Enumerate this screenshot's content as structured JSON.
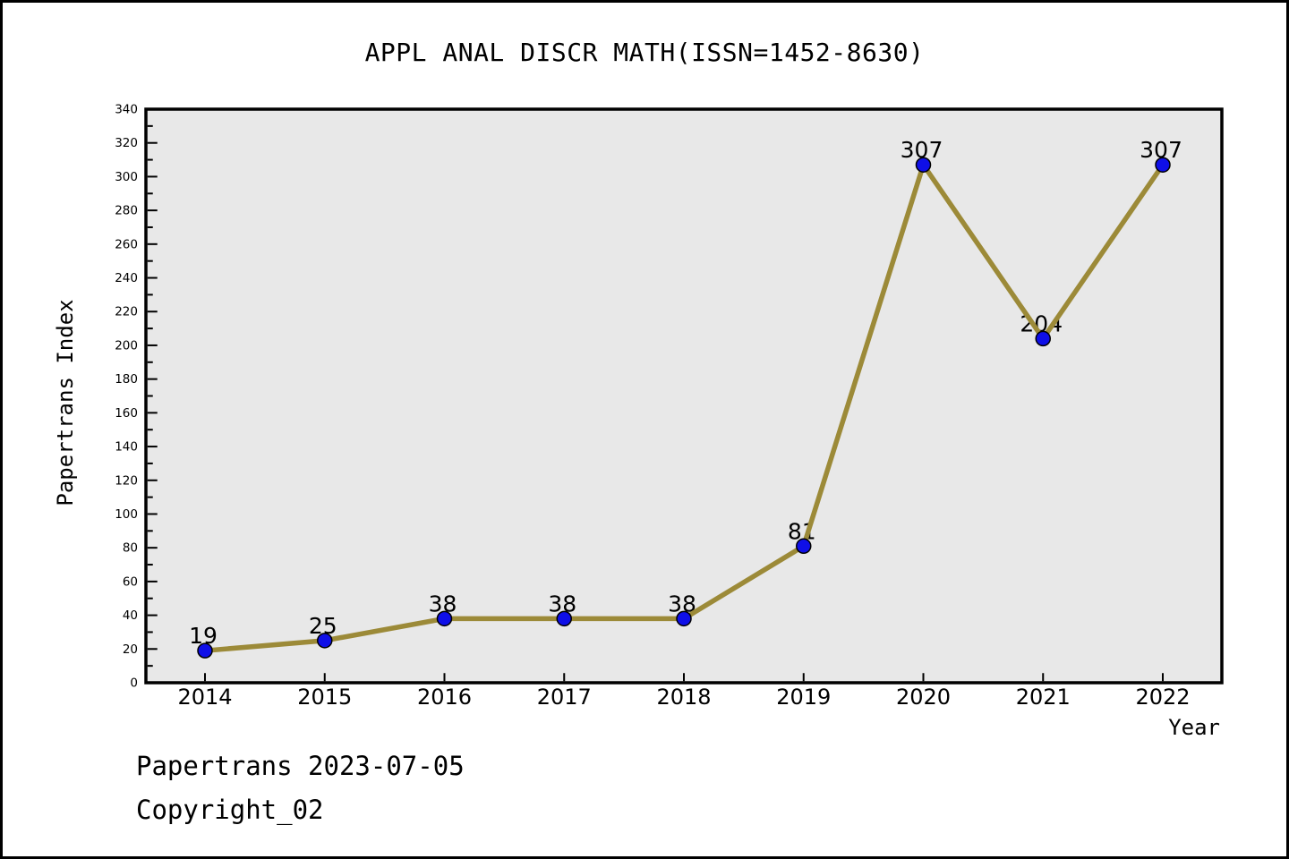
{
  "title": "APPL ANAL DISCR MATH(ISSN=1452-8630)",
  "footer": {
    "line1": "Papertrans 2023-07-05",
    "line2": "Copyright_02"
  },
  "chart_data": {
    "type": "line",
    "title": "APPL ANAL DISCR MATH(ISSN=1452-8630)",
    "x": [
      2014,
      2015,
      2016,
      2017,
      2018,
      2019,
      2020,
      2021,
      2022
    ],
    "values": [
      19,
      25,
      38,
      38,
      38,
      81,
      307,
      204,
      307
    ],
    "xlabel": "Year",
    "ylabel": "Papertrans Index",
    "ylim": [
      0,
      340
    ],
    "ytick_major_step": 20,
    "ytick_minor_step": 10,
    "grid": false,
    "legend": null,
    "colors": {
      "line": "#9c8a38",
      "marker_fill": "#0f0fe8",
      "marker_edge": "#000000",
      "plot_background": "#e8e8e8",
      "spine": "#000000",
      "text": "#000000"
    }
  }
}
